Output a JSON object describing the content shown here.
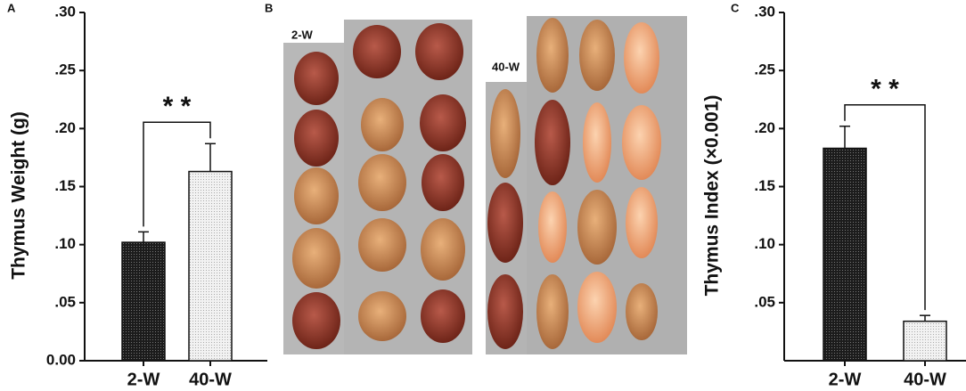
{
  "chart_data": [
    {
      "type": "bar",
      "panel_label": "A",
      "ylabel": "Thymus Weight (g)",
      "categories": [
        "2-W",
        "40-W"
      ],
      "values": [
        0.102,
        0.163
      ],
      "errors": [
        0.009,
        0.024
      ],
      "colors": [
        "#2a2a2a",
        "#e6e6e6"
      ],
      "significance": "* *",
      "ylim": [
        0,
        0.3
      ],
      "yticks": [
        {
          "value": 0,
          "label": "0.00"
        },
        {
          "value": 0.05,
          "label": ".05"
        },
        {
          "value": 0.1,
          "label": ".10"
        },
        {
          "value": 0.15,
          "label": ".15"
        },
        {
          "value": 0.2,
          "label": ".20"
        },
        {
          "value": 0.25,
          "label": ".25"
        },
        {
          "value": 0.3,
          "label": ".30"
        }
      ]
    },
    {
      "type": "bar",
      "panel_label": "C",
      "ylabel": "Thymus Index (×0.001)",
      "categories": [
        "2-W",
        "40-W"
      ],
      "values": [
        0.183,
        0.034
      ],
      "errors": [
        0.019,
        0.005
      ],
      "colors": [
        "#2a2a2a",
        "#e6e6e6"
      ],
      "significance": "* *",
      "ylim": [
        0,
        0.3
      ],
      "yticks": [
        {
          "value": 0.05,
          "label": ".05"
        },
        {
          "value": 0.1,
          "label": ".10"
        },
        {
          "value": 0.15,
          "label": ".15"
        },
        {
          "value": 0.2,
          "label": ".20"
        },
        {
          "value": 0.25,
          "label": ".25"
        },
        {
          "value": 0.3,
          "label": ".30"
        }
      ]
    }
  ],
  "photo_panel": {
    "panel_label": "B",
    "groups": [
      "2-W",
      "40-W"
    ]
  }
}
